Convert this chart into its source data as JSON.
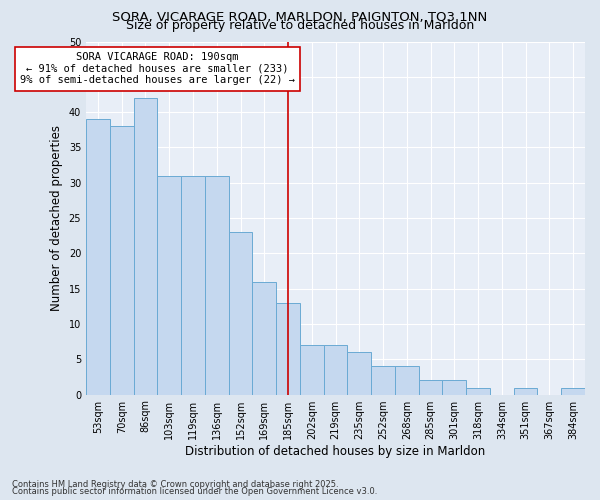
{
  "title_line1": "SORA, VICARAGE ROAD, MARLDON, PAIGNTON, TQ3 1NN",
  "title_line2": "Size of property relative to detached houses in Marldon",
  "xlabel": "Distribution of detached houses by size in Marldon",
  "ylabel": "Number of detached properties",
  "categories": [
    "53sqm",
    "70sqm",
    "86sqm",
    "103sqm",
    "119sqm",
    "136sqm",
    "152sqm",
    "169sqm",
    "185sqm",
    "202sqm",
    "219sqm",
    "235sqm",
    "252sqm",
    "268sqm",
    "285sqm",
    "301sqm",
    "318sqm",
    "334sqm",
    "351sqm",
    "367sqm",
    "384sqm"
  ],
  "values": [
    39,
    38,
    42,
    31,
    31,
    31,
    23,
    16,
    13,
    7,
    7,
    6,
    4,
    4,
    2,
    2,
    1,
    0,
    1,
    0,
    1
  ],
  "bar_color": "#c5d8ef",
  "bar_edge_color": "#6aaad4",
  "vline_x": 8,
  "vline_color": "#cc0000",
  "annotation_text": "SORA VICARAGE ROAD: 190sqm\n← 91% of detached houses are smaller (233)\n9% of semi-detached houses are larger (22) →",
  "annotation_box_color": "#ffffff",
  "annotation_box_edge": "#cc0000",
  "ylim": [
    0,
    50
  ],
  "yticks": [
    0,
    5,
    10,
    15,
    20,
    25,
    30,
    35,
    40,
    45,
    50
  ],
  "bg_color": "#dde6f0",
  "plot_bg_color": "#e8eef7",
  "footer_line1": "Contains HM Land Registry data © Crown copyright and database right 2025.",
  "footer_line2": "Contains public sector information licensed under the Open Government Licence v3.0.",
  "title_fontsize": 9.5,
  "subtitle_fontsize": 9,
  "axis_label_fontsize": 8.5,
  "tick_fontsize": 7,
  "footer_fontsize": 6,
  "annotation_fontsize": 7.5
}
